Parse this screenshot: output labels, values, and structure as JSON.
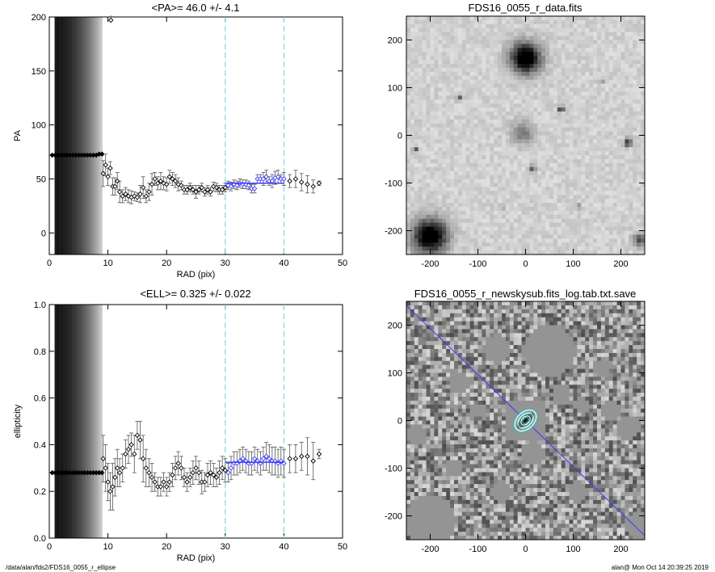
{
  "footer": {
    "path": "/data/alan/fds2/FDS16_0055_r_ellipse",
    "stamp": "alan@  Mon Oct 14 20:39:25 2019"
  },
  "colors": {
    "axis": "#000000",
    "data": "#000000",
    "fit": "#3a3aff",
    "guide": "#7fd8df",
    "contour_cyan": "#3fb8b0"
  },
  "chart_data": [
    {
      "id": "pa",
      "type": "scatter",
      "title": "<PA>=  46.0 +/-   4.1",
      "xlabel": "RAD (pix)",
      "ylabel": "PA",
      "xlim": [
        0,
        50
      ],
      "ylim": [
        -20,
        200
      ],
      "xticks": [
        0,
        10,
        20,
        30,
        40,
        50
      ],
      "yticks": [
        0,
        50,
        100,
        150,
        200
      ],
      "guides_x": [
        30,
        40
      ],
      "fit": {
        "x": [
          30,
          40
        ],
        "y": 46.0
      },
      "dense_x_max": 9,
      "series": [
        {
          "x": [
            0.5,
            1.0,
            1.5,
            2.0,
            2.5,
            3.0,
            3.5,
            4.0,
            4.5,
            5.0,
            5.5,
            6.0,
            6.5,
            7.0,
            7.5,
            8.0,
            8.5,
            9.0
          ],
          "y": [
            72,
            72,
            72,
            72,
            72,
            72,
            72,
            72,
            72,
            72,
            72,
            72,
            72,
            72,
            72,
            72,
            73,
            73
          ]
        },
        {
          "x": [
            9.2,
            9.6,
            10.0,
            10.4,
            10.8,
            11.2,
            11.6,
            12.0,
            12.5,
            13.0,
            13.5,
            14.0,
            14.5,
            15.0,
            15.5,
            16.0,
            16.5,
            17.0,
            17.5,
            18.0,
            18.5,
            19.0,
            19.5,
            20.0,
            20.5,
            21.0,
            21.5,
            22.0,
            22.5,
            23.0,
            23.5,
            24.0,
            24.5,
            25.0,
            25.5,
            26.0,
            26.5,
            27.0,
            27.5,
            28.0,
            28.5,
            29.0,
            29.5,
            30.0
          ],
          "y": [
            55,
            63,
            52,
            60,
            43,
            43,
            48,
            38,
            34,
            36,
            34,
            33,
            34,
            33,
            36,
            42,
            34,
            38,
            45,
            50,
            46,
            48,
            46,
            45,
            52,
            50,
            48,
            45,
            44,
            40,
            40,
            42,
            40,
            38,
            40,
            42,
            38,
            40,
            38,
            43,
            42,
            40,
            40,
            42
          ],
          "err": [
            12,
            10,
            8,
            6,
            8,
            8,
            8,
            10,
            6,
            6,
            6,
            6,
            4,
            4,
            8,
            10,
            6,
            8,
            10,
            6,
            6,
            8,
            6,
            6,
            6,
            6,
            6,
            6,
            4,
            4,
            4,
            4,
            4,
            6,
            4,
            4,
            4,
            4,
            4,
            4,
            4,
            4,
            4,
            4
          ]
        },
        {
          "x": [
            30.5,
            31.0,
            31.5,
            32.0,
            32.5,
            33.0,
            33.5,
            34.0,
            34.5,
            35.0,
            35.5,
            36.0,
            36.5,
            37.0,
            37.5,
            38.0,
            38.5,
            39.0,
            39.5,
            40.0
          ],
          "y": [
            44,
            43,
            45,
            44,
            46,
            45,
            45,
            44,
            41,
            41,
            50,
            50,
            50,
            52,
            48,
            48,
            51,
            52,
            50,
            50
          ],
          "err": [
            4,
            4,
            4,
            4,
            4,
            4,
            4,
            4,
            4,
            4,
            4,
            4,
            6,
            6,
            4,
            6,
            6,
            6,
            4,
            6
          ]
        },
        {
          "x": [
            41.0,
            42.0,
            43.0,
            44.0,
            45.0,
            46.0
          ],
          "y": [
            48,
            50,
            47,
            45,
            43,
            46
          ],
          "err": [
            6,
            8,
            8,
            8,
            6,
            2
          ]
        }
      ],
      "outlier": {
        "x": 10.5,
        "y": 197
      }
    },
    {
      "id": "ell",
      "type": "scatter",
      "title": "<ELL>= 0.325 +/-  0.022",
      "xlabel": "RAD (pix)",
      "ylabel": "ellipticity",
      "xlim": [
        0,
        50
      ],
      "ylim": [
        0,
        1
      ],
      "xticks": [
        0,
        10,
        20,
        30,
        40,
        50
      ],
      "yticks": [
        0.0,
        0.2,
        0.4,
        0.6,
        0.8,
        1.0
      ],
      "ytick_labels": [
        "0.0",
        "0.2",
        "0.4",
        "0.6",
        "0.8",
        "1.0"
      ],
      "guides_x": [
        30,
        40
      ],
      "fit": {
        "x": [
          30,
          40
        ],
        "y": 0.325
      },
      "dense_x_max": 9,
      "series": [
        {
          "x": [
            0.5,
            1.0,
            1.5,
            2.0,
            2.5,
            3.0,
            3.5,
            4.0,
            4.5,
            5.0,
            5.5,
            6.0,
            6.5,
            7.0,
            7.5,
            8.0,
            8.5,
            9.0
          ],
          "y": [
            0.28,
            0.28,
            0.28,
            0.28,
            0.28,
            0.28,
            0.28,
            0.28,
            0.28,
            0.28,
            0.28,
            0.28,
            0.28,
            0.28,
            0.28,
            0.28,
            0.28,
            0.28
          ]
        },
        {
          "x": [
            9.2,
            9.6,
            10.0,
            10.4,
            10.8,
            11.2,
            11.6,
            12.0,
            12.5,
            13.0,
            13.5,
            14.0,
            14.5,
            15.0,
            15.5,
            16.0,
            16.5,
            17.0,
            17.5,
            18.0,
            18.5,
            19.0,
            19.5,
            20.0,
            20.5,
            21.0,
            21.5,
            22.0,
            22.5,
            23.0,
            23.5,
            24.0,
            24.5,
            25.0,
            25.5,
            26.0,
            26.5,
            27.0,
            27.5,
            28.0,
            28.5,
            29.0,
            29.5,
            30.0
          ],
          "y": [
            0.34,
            0.3,
            0.24,
            0.2,
            0.22,
            0.26,
            0.3,
            0.28,
            0.3,
            0.36,
            0.38,
            0.4,
            0.36,
            0.44,
            0.42,
            0.34,
            0.3,
            0.28,
            0.26,
            0.24,
            0.22,
            0.22,
            0.24,
            0.22,
            0.24,
            0.27,
            0.3,
            0.32,
            0.3,
            0.26,
            0.24,
            0.26,
            0.28,
            0.3,
            0.28,
            0.24,
            0.24,
            0.27,
            0.28,
            0.27,
            0.26,
            0.28,
            0.3,
            0.29
          ],
          "err": [
            0.1,
            0.1,
            0.08,
            0.08,
            0.1,
            0.08,
            0.08,
            0.06,
            0.06,
            0.06,
            0.06,
            0.05,
            0.08,
            0.06,
            0.08,
            0.1,
            0.08,
            0.06,
            0.06,
            0.04,
            0.04,
            0.04,
            0.04,
            0.04,
            0.04,
            0.05,
            0.05,
            0.05,
            0.05,
            0.04,
            0.04,
            0.04,
            0.05,
            0.05,
            0.05,
            0.05,
            0.04,
            0.05,
            0.05,
            0.05,
            0.04,
            0.05,
            0.05,
            0.05
          ]
        },
        {
          "x": [
            30.5,
            31.0,
            31.5,
            32.0,
            32.5,
            33.0,
            33.5,
            34.0,
            34.5,
            35.0,
            35.5,
            36.0,
            36.5,
            37.0,
            37.5,
            38.0,
            38.5,
            39.0,
            39.5,
            40.0
          ],
          "y": [
            0.28,
            0.3,
            0.32,
            0.32,
            0.33,
            0.34,
            0.33,
            0.32,
            0.32,
            0.34,
            0.33,
            0.32,
            0.34,
            0.35,
            0.34,
            0.33,
            0.33,
            0.32,
            0.33,
            0.32
          ],
          "err": [
            0.04,
            0.05,
            0.05,
            0.05,
            0.05,
            0.05,
            0.05,
            0.05,
            0.05,
            0.05,
            0.05,
            0.05,
            0.05,
            0.06,
            0.06,
            0.06,
            0.06,
            0.06,
            0.06,
            0.06
          ]
        },
        {
          "x": [
            41.0,
            42.0,
            43.0,
            44.0,
            45.0,
            46.0
          ],
          "y": [
            0.34,
            0.34,
            0.35,
            0.35,
            0.33,
            0.36
          ],
          "err": [
            0.06,
            0.06,
            0.06,
            0.08,
            0.08,
            0.02
          ]
        }
      ]
    },
    {
      "id": "img1",
      "type": "heatmap",
      "title": "FDS16_0055_r_data.fits",
      "xlim": [
        -250,
        250
      ],
      "ylim": [
        -250,
        250
      ],
      "xticks": [
        -200,
        -100,
        0,
        100,
        200
      ],
      "yticks": [
        -200,
        -100,
        0,
        100,
        200
      ],
      "sources": [
        {
          "x": 0,
          "y": 162,
          "r": 40,
          "peak": 1.0
        },
        {
          "x": -200,
          "y": -212,
          "r": 45,
          "peak": 1.0
        },
        {
          "x": -5,
          "y": 5,
          "r": 30,
          "peak": 0.35
        },
        {
          "x": 215,
          "y": -15,
          "r": 10,
          "peak": 0.7
        },
        {
          "x": 75,
          "y": 55,
          "r": 8,
          "peak": 0.7
        },
        {
          "x": 240,
          "y": -220,
          "r": 18,
          "peak": 0.5
        },
        {
          "x": -140,
          "y": 78,
          "r": 7,
          "peak": 0.5
        },
        {
          "x": 15,
          "y": -70,
          "r": 8,
          "peak": 0.6
        },
        {
          "x": -230,
          "y": -30,
          "r": 7,
          "peak": 0.5
        },
        {
          "x": 110,
          "y": -150,
          "r": 6,
          "peak": 0.5
        },
        {
          "x": 160,
          "y": 110,
          "r": 5,
          "peak": 0.4
        },
        {
          "x": -50,
          "y": -150,
          "r": 6,
          "peak": 0.4
        }
      ]
    },
    {
      "id": "img2",
      "type": "heatmap",
      "title": "FDS16_0055_r_newskysub.fits_log.tab.txt.save",
      "xlim": [
        -250,
        250
      ],
      "ylim": [
        -250,
        250
      ],
      "xticks": [
        -200,
        -100,
        0,
        100,
        200
      ],
      "yticks": [
        -200,
        -100,
        0,
        100,
        200
      ],
      "pa_deg": 46.0,
      "masks": [
        {
          "x": 50,
          "y": 145,
          "r": 55
        },
        {
          "x": -60,
          "y": 150,
          "r": 30
        },
        {
          "x": -200,
          "y": -210,
          "r": 55
        },
        {
          "x": 215,
          "y": -15,
          "r": 25
        },
        {
          "x": 240,
          "y": -220,
          "r": 30
        },
        {
          "x": 75,
          "y": 55,
          "r": 22
        },
        {
          "x": -140,
          "y": 80,
          "r": 22
        },
        {
          "x": 15,
          "y": -70,
          "r": 25
        },
        {
          "x": -230,
          "y": -30,
          "r": 20
        },
        {
          "x": 110,
          "y": -150,
          "r": 22
        },
        {
          "x": 160,
          "y": 110,
          "r": 20
        },
        {
          "x": -50,
          "y": -150,
          "r": 22
        },
        {
          "x": -150,
          "y": -100,
          "r": 18
        },
        {
          "x": 180,
          "y": 20,
          "r": 22
        },
        {
          "x": 120,
          "y": 30,
          "r": 18
        },
        {
          "x": -100,
          "y": 20,
          "r": 16
        }
      ],
      "contours_a": [
        8,
        12,
        16,
        20,
        24,
        28,
        32
      ]
    }
  ]
}
